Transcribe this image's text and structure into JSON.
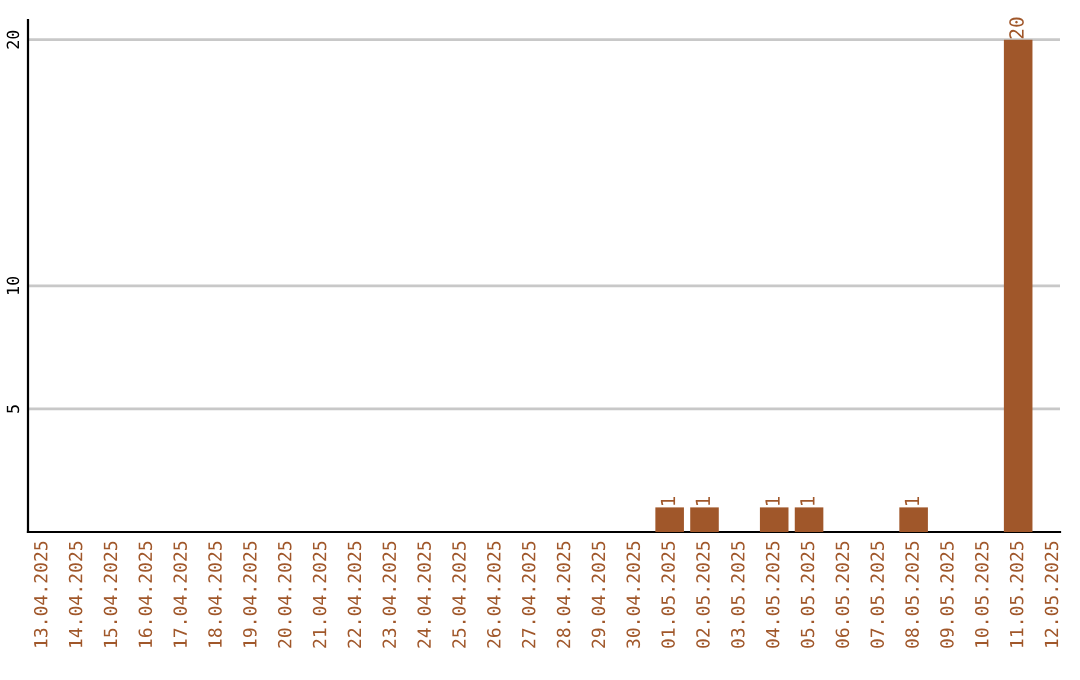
{
  "chart_data": {
    "type": "bar",
    "categories": [
      "13.04.2025",
      "14.04.2025",
      "15.04.2025",
      "16.04.2025",
      "17.04.2025",
      "18.04.2025",
      "19.04.2025",
      "20.04.2025",
      "21.04.2025",
      "22.04.2025",
      "23.04.2025",
      "24.04.2025",
      "25.04.2025",
      "26.04.2025",
      "27.04.2025",
      "28.04.2025",
      "29.04.2025",
      "30.04.2025",
      "01.05.2025",
      "02.05.2025",
      "03.05.2025",
      "04.05.2025",
      "05.05.2025",
      "06.05.2025",
      "07.05.2025",
      "08.05.2025",
      "09.05.2025",
      "10.05.2025",
      "11.05.2025",
      "12.05.2025"
    ],
    "values": [
      0,
      0,
      0,
      0,
      0,
      0,
      0,
      0,
      0,
      0,
      0,
      0,
      0,
      0,
      0,
      0,
      0,
      0,
      1,
      1,
      0,
      1,
      1,
      0,
      0,
      1,
      0,
      0,
      20,
      0
    ],
    "value_labels": [
      null,
      null,
      null,
      null,
      null,
      null,
      null,
      null,
      null,
      null,
      null,
      null,
      null,
      null,
      null,
      null,
      null,
      null,
      "1",
      "1",
      null,
      "1",
      "1",
      null,
      null,
      "1",
      null,
      null,
      "20",
      null
    ],
    "color": "#a0572a",
    "ylim": [
      0,
      20.8
    ],
    "yticks": [
      5,
      10,
      20
    ],
    "grid": "y"
  }
}
